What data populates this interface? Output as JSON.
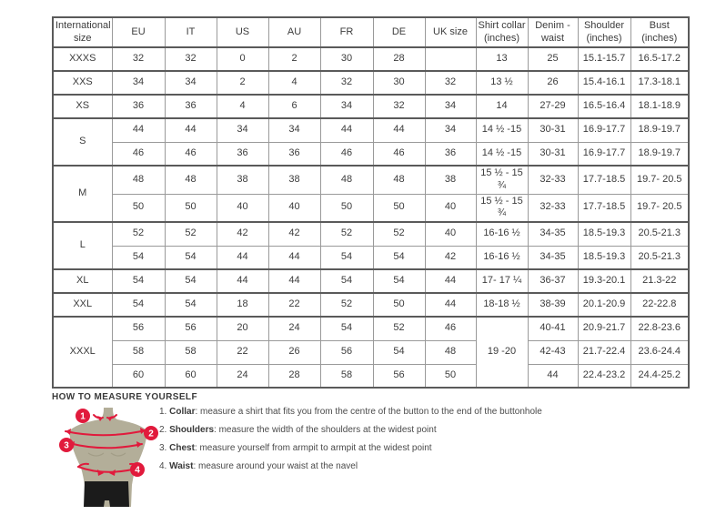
{
  "table": {
    "columns": [
      "International size",
      "EU",
      "IT",
      "US",
      "AU",
      "FR",
      "DE",
      "UK size",
      "Shirt collar (inches)",
      "Denim - waist",
      "Shoulder (inches)",
      "Bust (inches)"
    ],
    "rows": [
      {
        "cells": [
          {
            "text": "XXXS",
            "size": true
          },
          {
            "text": "32"
          },
          {
            "text": "32"
          },
          {
            "text": "0"
          },
          {
            "text": "2"
          },
          {
            "text": "30"
          },
          {
            "text": "28"
          },
          {
            "text": ""
          },
          {
            "text": "13"
          },
          {
            "text": "25"
          },
          {
            "text": "15.1-15.7"
          },
          {
            "text": "16.5-17.2"
          }
        ]
      },
      {
        "cells": [
          {
            "text": "XXS",
            "size": true
          },
          {
            "text": "34"
          },
          {
            "text": "34"
          },
          {
            "text": "2"
          },
          {
            "text": "4"
          },
          {
            "text": "32"
          },
          {
            "text": "30"
          },
          {
            "text": "32"
          },
          {
            "text": "13 ½"
          },
          {
            "text": "26"
          },
          {
            "text": "15.4-16.1"
          },
          {
            "text": "17.3-18.1"
          }
        ]
      },
      {
        "cells": [
          {
            "text": "XS",
            "size": true
          },
          {
            "text": "36"
          },
          {
            "text": "36"
          },
          {
            "text": "4"
          },
          {
            "text": "6"
          },
          {
            "text": "34"
          },
          {
            "text": "32"
          },
          {
            "text": "34"
          },
          {
            "text": "14"
          },
          {
            "text": "27-29"
          },
          {
            "text": "16.5-16.4"
          },
          {
            "text": "18.1-18.9"
          }
        ]
      },
      {
        "cells": [
          {
            "text": "S",
            "size": true,
            "rowspan": 2
          },
          {
            "text": "44"
          },
          {
            "text": "44"
          },
          {
            "text": "34"
          },
          {
            "text": "34"
          },
          {
            "text": "44"
          },
          {
            "text": "44"
          },
          {
            "text": "34"
          },
          {
            "text": "14 ½ -15"
          },
          {
            "text": "30-31"
          },
          {
            "text": "16.9-17.7"
          },
          {
            "text": "18.9-19.7"
          }
        ]
      },
      {
        "cells": [
          {
            "text": "46"
          },
          {
            "text": "46"
          },
          {
            "text": "36"
          },
          {
            "text": "36"
          },
          {
            "text": "46"
          },
          {
            "text": "46"
          },
          {
            "text": "36"
          },
          {
            "text": "14 ½ -15"
          },
          {
            "text": "30-31"
          },
          {
            "text": "16.9-17.7"
          },
          {
            "text": "18.9-19.7"
          }
        ]
      },
      {
        "cells": [
          {
            "text": "M",
            "size": true,
            "rowspan": 2
          },
          {
            "text": "48"
          },
          {
            "text": "48"
          },
          {
            "text": "38"
          },
          {
            "text": "38"
          },
          {
            "text": "48"
          },
          {
            "text": "48"
          },
          {
            "text": "38"
          },
          {
            "text": "15 ½ - 15 ¾"
          },
          {
            "text": "32-33"
          },
          {
            "text": "17.7-18.5"
          },
          {
            "text": "19.7- 20.5"
          }
        ]
      },
      {
        "cells": [
          {
            "text": "50"
          },
          {
            "text": "50"
          },
          {
            "text": "40"
          },
          {
            "text": "40"
          },
          {
            "text": "50"
          },
          {
            "text": "50"
          },
          {
            "text": "40"
          },
          {
            "text": "15 ½ - 15 ¾"
          },
          {
            "text": "32-33"
          },
          {
            "text": "17.7-18.5"
          },
          {
            "text": "19.7- 20.5"
          }
        ]
      },
      {
        "cells": [
          {
            "text": "L",
            "size": true,
            "rowspan": 2
          },
          {
            "text": "52"
          },
          {
            "text": "52"
          },
          {
            "text": "42"
          },
          {
            "text": "42"
          },
          {
            "text": "52"
          },
          {
            "text": "52"
          },
          {
            "text": "40"
          },
          {
            "text": "16-16 ½"
          },
          {
            "text": "34-35"
          },
          {
            "text": "18.5-19.3"
          },
          {
            "text": "20.5-21.3"
          }
        ]
      },
      {
        "cells": [
          {
            "text": "54"
          },
          {
            "text": "54"
          },
          {
            "text": "44"
          },
          {
            "text": "44"
          },
          {
            "text": "54"
          },
          {
            "text": "54"
          },
          {
            "text": "42"
          },
          {
            "text": "16-16 ½"
          },
          {
            "text": "34-35"
          },
          {
            "text": "18.5-19.3"
          },
          {
            "text": "20.5-21.3"
          }
        ]
      },
      {
        "cells": [
          {
            "text": "XL",
            "size": true
          },
          {
            "text": "54"
          },
          {
            "text": "54"
          },
          {
            "text": "44"
          },
          {
            "text": "44"
          },
          {
            "text": "54"
          },
          {
            "text": "54"
          },
          {
            "text": "44"
          },
          {
            "text": "17- 17 ¼"
          },
          {
            "text": "36-37"
          },
          {
            "text": "19.3-20.1"
          },
          {
            "text": "21.3-22"
          }
        ]
      },
      {
        "cells": [
          {
            "text": "XXL",
            "size": true
          },
          {
            "text": "54"
          },
          {
            "text": "54"
          },
          {
            "text": "18"
          },
          {
            "text": "22"
          },
          {
            "text": "52"
          },
          {
            "text": "50"
          },
          {
            "text": "44"
          },
          {
            "text": "18-18 ½"
          },
          {
            "text": "38-39"
          },
          {
            "text": "20.1-20.9"
          },
          {
            "text": "22-22.8"
          }
        ]
      },
      {
        "cells": [
          {
            "text": "XXXL",
            "size": true,
            "rowspan": 3
          },
          {
            "text": "56"
          },
          {
            "text": "56"
          },
          {
            "text": "20"
          },
          {
            "text": "24"
          },
          {
            "text": "54"
          },
          {
            "text": "52"
          },
          {
            "text": "46"
          },
          {
            "text": "19 -20",
            "rowspan": 3
          },
          {
            "text": "40-41"
          },
          {
            "text": "20.9-21.7"
          },
          {
            "text": "22.8-23.6"
          }
        ]
      },
      {
        "cells": [
          {
            "text": "58"
          },
          {
            "text": "58"
          },
          {
            "text": "22"
          },
          {
            "text": "26"
          },
          {
            "text": "56"
          },
          {
            "text": "54"
          },
          {
            "text": "48"
          },
          {
            "text": "42-43"
          },
          {
            "text": "21.7-22.4"
          },
          {
            "text": "23.6-24.4"
          }
        ]
      },
      {
        "cells": [
          {
            "text": "60"
          },
          {
            "text": "60"
          },
          {
            "text": "24"
          },
          {
            "text": "28"
          },
          {
            "text": "58"
          },
          {
            "text": "56"
          },
          {
            "text": "50"
          },
          {
            "text": "44"
          },
          {
            "text": "22.4-23.2"
          },
          {
            "text": "24.4-25.2"
          }
        ]
      }
    ]
  },
  "measure": {
    "heading": "HOW TO MEASURE YOURSELF",
    "instructions": [
      {
        "num": "1.",
        "label": "Collar",
        "text": ": measure a shirt that fits you from the centre of the button to the end of the buttonhole"
      },
      {
        "num": "2.",
        "label": "Shoulders",
        "text": ": measure the width of the shoulders at the widest point"
      },
      {
        "num": "3.",
        "label": "Chest",
        "text": ": measure yourself from armpit to armpit at the widest point"
      },
      {
        "num": "4.",
        "label": "Waist",
        "text": ": measure around your waist at the navel"
      }
    ],
    "figure": {
      "numbers": {
        "n1": "1",
        "n2": "2",
        "n3": "3",
        "n4": "4"
      },
      "marker_color": "#e11a3c",
      "body_color": "#b3ae99",
      "shorts_color": "#1b1b1b"
    }
  }
}
